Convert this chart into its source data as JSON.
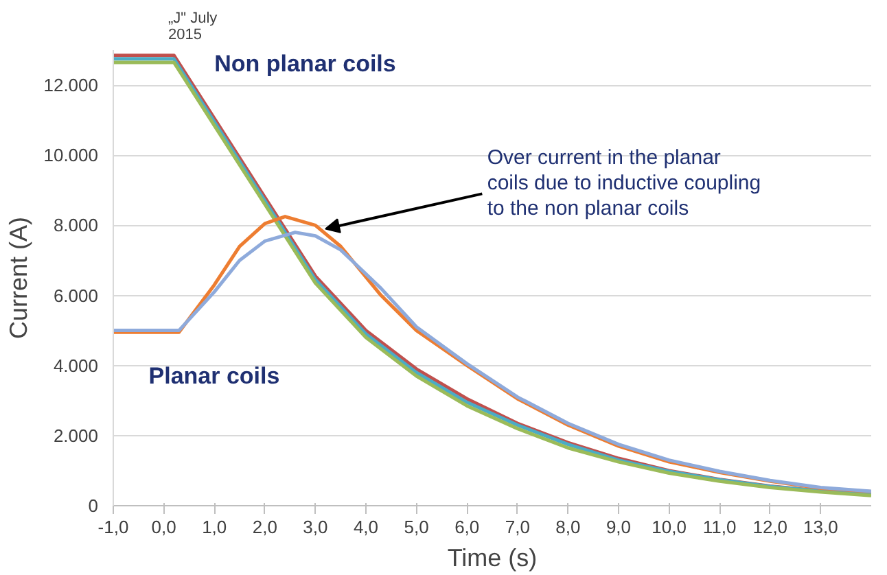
{
  "chart_data": {
    "type": "line",
    "xlabel": "Time (s)",
    "ylabel": "Current (A)",
    "xlim": [
      -1,
      14
    ],
    "ylim": [
      0,
      13000
    ],
    "xticks": [
      {
        "value": -1,
        "label": "-1,0"
      },
      {
        "value": 0,
        "label": "0,0"
      },
      {
        "value": 1,
        "label": "1,0"
      },
      {
        "value": 2,
        "label": "2,0"
      },
      {
        "value": 3,
        "label": "3,0"
      },
      {
        "value": 4,
        "label": "4,0"
      },
      {
        "value": 5,
        "label": "5,0"
      },
      {
        "value": 6,
        "label": "6,0"
      },
      {
        "value": 7,
        "label": "7,0"
      },
      {
        "value": 8,
        "label": "8,0"
      },
      {
        "value": 9,
        "label": "9,0"
      },
      {
        "value": 10,
        "label": "10,0"
      },
      {
        "value": 11,
        "label": "11,0"
      },
      {
        "value": 12,
        "label": "12,0"
      },
      {
        "value": 13,
        "label": "13,0"
      }
    ],
    "yticks": [
      0,
      {
        "value": 2000,
        "label": "2.000"
      },
      {
        "value": 4000,
        "label": "4.000"
      },
      {
        "value": 6000,
        "label": "6.000"
      },
      {
        "value": 8000,
        "label": "8.000"
      },
      {
        "value": 10000,
        "label": "10.000"
      },
      {
        "value": 12000,
        "label": "12.000"
      }
    ],
    "grid": "y",
    "marker": "none",
    "line_style": "solid",
    "series": [
      {
        "color": "#c0504d",
        "x": [
          -1,
          0.2,
          1,
          2,
          3,
          4,
          5,
          6,
          7,
          8,
          9,
          10,
          11,
          12,
          13,
          14
        ],
        "values": [
          12850,
          12850,
          11050,
          8800,
          6550,
          5000,
          3900,
          3050,
          2350,
          1800,
          1350,
          1000,
          750,
          560,
          420,
          320
        ]
      },
      {
        "color": "#4bacc6",
        "x": [
          -1,
          0.2,
          1,
          2,
          3,
          4,
          5,
          6,
          7,
          8,
          9,
          10,
          11,
          12,
          13,
          14
        ],
        "values": [
          12750,
          12750,
          10950,
          8700,
          6450,
          4900,
          3800,
          2950,
          2300,
          1750,
          1300,
          980,
          740,
          550,
          420,
          330
        ]
      },
      {
        "color": "#9bbb59",
        "x": [
          -1,
          0.2,
          1,
          2,
          3,
          4,
          5,
          6,
          7,
          8,
          9,
          10,
          11,
          12,
          13,
          14
        ],
        "values": [
          12650,
          12650,
          10850,
          8600,
          6350,
          4800,
          3700,
          2850,
          2200,
          1650,
          1250,
          930,
          700,
          520,
          390,
          290
        ]
      },
      {
        "color": "#ed7d31",
        "x": [
          -1,
          0.3,
          1,
          1.5,
          2,
          2.4,
          3,
          3.5,
          4.3,
          5,
          6,
          7,
          8,
          9,
          10,
          11,
          12,
          13,
          14
        ],
        "values": [
          4950,
          4950,
          6300,
          7400,
          8050,
          8250,
          8000,
          7400,
          6000,
          5000,
          4000,
          3050,
          2300,
          1700,
          1250,
          950,
          700,
          500,
          400
        ]
      },
      {
        "color": "#8eaadb",
        "x": [
          -1,
          0.3,
          1,
          1.5,
          2,
          2.6,
          3,
          3.5,
          4.3,
          5,
          6,
          7,
          8,
          9,
          10,
          11,
          12,
          13,
          14
        ],
        "values": [
          5000,
          5000,
          6100,
          7000,
          7550,
          7800,
          7700,
          7300,
          6200,
          5100,
          4050,
          3100,
          2350,
          1750,
          1300,
          980,
          720,
          520,
          410
        ]
      }
    ],
    "annotations": [
      "„J\" July\n2015",
      "Non planar coils",
      "Planar coils",
      {
        "text": "Over current in the planar\ncoils due to inductive coupling\nto the non planar coils",
        "x": 3.2,
        "y": 7900
      }
    ]
  }
}
